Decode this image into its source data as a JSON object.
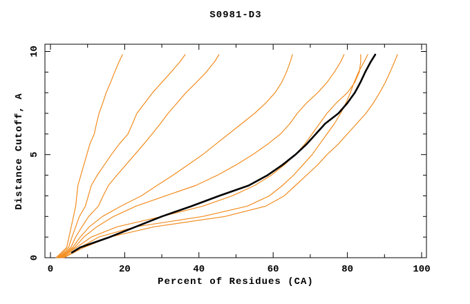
{
  "window": {
    "background": "#ffffff"
  },
  "chart_data": {
    "type": "line",
    "title": "S0981-D3",
    "xlabel": "Percent of Residues (CA)",
    "ylabel": "Distance Cutoff, A",
    "xlim": [
      0,
      100
    ],
    "ylim": [
      0,
      10
    ],
    "x_major_ticks": [
      0,
      20,
      40,
      60,
      80,
      100
    ],
    "x_minor_ticks": [
      10,
      30,
      50,
      70,
      90
    ],
    "y_major_ticks": [
      0,
      5,
      10
    ],
    "y_minor_ticks": [
      1,
      2,
      3,
      4,
      6,
      7,
      8,
      9
    ],
    "grid": false,
    "legend": "none",
    "axis_color": "#000000",
    "series_color_orange": "#f28c1e",
    "series_color_highlight": "#000000",
    "series": [
      {
        "name": "model-1",
        "color": "#f28c1e",
        "width": 1.2,
        "points": [
          [
            0,
            1.5
          ],
          [
            0.5,
            4.4
          ],
          [
            1,
            5.0
          ],
          [
            1.5,
            5.6
          ],
          [
            2,
            6.2
          ],
          [
            2.5,
            6.8
          ],
          [
            3,
            7.1
          ],
          [
            3.5,
            7.4
          ],
          [
            4,
            8.2
          ],
          [
            4.5,
            9.0
          ],
          [
            5,
            9.8
          ],
          [
            5.5,
            10.6
          ],
          [
            6,
            11.8
          ],
          [
            6.5,
            12.4
          ],
          [
            7,
            13.1
          ],
          [
            7.5,
            14.1
          ],
          [
            8,
            15.0
          ],
          [
            8.5,
            16.2
          ],
          [
            9,
            17.3
          ],
          [
            9.5,
            18.5
          ],
          [
            9.85,
            19.4
          ]
        ]
      },
      {
        "name": "model-2",
        "color": "#f28c1e",
        "width": 1.2,
        "points": [
          [
            0,
            1.8
          ],
          [
            0.5,
            4.9
          ],
          [
            1,
            5.8
          ],
          [
            1.5,
            6.8
          ],
          [
            2,
            7.8
          ],
          [
            2.5,
            9.4
          ],
          [
            3,
            10.2
          ],
          [
            3.5,
            11.0
          ],
          [
            4,
            12.6
          ],
          [
            4.5,
            14.5
          ],
          [
            5,
            16.4
          ],
          [
            5.5,
            18.5
          ],
          [
            6,
            20.9
          ],
          [
            6.5,
            22.1
          ],
          [
            7,
            23.3
          ],
          [
            7.5,
            25.4
          ],
          [
            8,
            27.5
          ],
          [
            8.5,
            30.0
          ],
          [
            9,
            32.5
          ],
          [
            9.5,
            34.9
          ],
          [
            9.85,
            36.3
          ]
        ]
      },
      {
        "name": "model-3",
        "color": "#f28c1e",
        "width": 1.2,
        "points": [
          [
            0,
            2.1
          ],
          [
            0.5,
            5.5
          ],
          [
            1,
            6.8
          ],
          [
            1.5,
            8.5
          ],
          [
            2,
            10.3
          ],
          [
            2.5,
            12.9
          ],
          [
            3,
            14.2
          ],
          [
            3.5,
            15.6
          ],
          [
            4,
            17.9
          ],
          [
            4.5,
            20.3
          ],
          [
            5,
            22.7
          ],
          [
            5.5,
            25.1
          ],
          [
            6,
            27.4
          ],
          [
            6.5,
            29.6
          ],
          [
            7,
            31.7
          ],
          [
            7.5,
            34.1
          ],
          [
            8,
            36.5
          ],
          [
            8.5,
            39.3
          ],
          [
            9,
            42.0
          ],
          [
            9.5,
            44.2
          ],
          [
            9.85,
            45.4
          ]
        ]
      },
      {
        "name": "model-4",
        "color": "#f28c1e",
        "width": 1.2,
        "points": [
          [
            0,
            2.4
          ],
          [
            0.5,
            6.0
          ],
          [
            1,
            8.0
          ],
          [
            1.5,
            10.5
          ],
          [
            2,
            14.0
          ],
          [
            2.5,
            19.0
          ],
          [
            3,
            24.5
          ],
          [
            3.5,
            28.7
          ],
          [
            4,
            33.0
          ],
          [
            4.5,
            37.0
          ],
          [
            5,
            41.0
          ],
          [
            5.5,
            44.5
          ],
          [
            6,
            48.0
          ],
          [
            6.5,
            51.5
          ],
          [
            7,
            55.0
          ],
          [
            7.5,
            58.0
          ],
          [
            8,
            60.5
          ],
          [
            8.5,
            62.3
          ],
          [
            9,
            63.6
          ],
          [
            9.5,
            64.6
          ],
          [
            9.85,
            65.2
          ]
        ]
      },
      {
        "name": "model-5",
        "color": "#f28c1e",
        "width": 1.2,
        "points": [
          [
            0,
            2.7
          ],
          [
            0.5,
            6.5
          ],
          [
            1,
            9.0
          ],
          [
            1.5,
            12.5
          ],
          [
            2,
            17.0
          ],
          [
            2.5,
            23.0
          ],
          [
            3,
            31.0
          ],
          [
            3.5,
            39.1
          ],
          [
            4,
            45.0
          ],
          [
            4.5,
            50.0
          ],
          [
            5,
            54.5
          ],
          [
            5.5,
            58.5
          ],
          [
            6,
            62.0
          ],
          [
            6.5,
            64.5
          ],
          [
            7,
            66.5
          ],
          [
            7.5,
            69.0
          ],
          [
            8,
            72.0
          ],
          [
            8.5,
            74.5
          ],
          [
            9,
            76.5
          ],
          [
            9.5,
            78.2
          ],
          [
            9.85,
            79.1
          ]
        ]
      },
      {
        "name": "model-6",
        "color": "#f28c1e",
        "width": 1.2,
        "points": [
          [
            0,
            3.0
          ],
          [
            0.5,
            7.0
          ],
          [
            1,
            11.0
          ],
          [
            1.5,
            18.0
          ],
          [
            2,
            30.0
          ],
          [
            2.5,
            41.0
          ],
          [
            3,
            49.0
          ],
          [
            3.5,
            55.0
          ],
          [
            4,
            59.5
          ],
          [
            4.5,
            63.0
          ],
          [
            5,
            66.0
          ],
          [
            5.5,
            68.5
          ],
          [
            6,
            70.5
          ],
          [
            6.5,
            72.5
          ],
          [
            7,
            74.5
          ],
          [
            7.5,
            77.0
          ],
          [
            8,
            80.0
          ],
          [
            8.5,
            82.0
          ],
          [
            9,
            83.2
          ],
          [
            9.5,
            83.6
          ],
          [
            9.85,
            83.6
          ]
        ]
      },
      {
        "name": "model-7",
        "color": "#f28c1e",
        "width": 1.2,
        "points": [
          [
            0,
            3.3
          ],
          [
            0.5,
            8.0
          ],
          [
            1,
            13.0
          ],
          [
            1.5,
            23.0
          ],
          [
            2,
            41.0
          ],
          [
            2.5,
            53.0
          ],
          [
            3,
            59.0
          ],
          [
            3.5,
            62.5
          ],
          [
            4,
            65.5
          ],
          [
            4.5,
            68.0
          ],
          [
            5,
            70.5
          ],
          [
            5.5,
            72.5
          ],
          [
            6,
            74.5
          ],
          [
            6.5,
            76.5
          ],
          [
            7,
            78.2
          ],
          [
            7.5,
            79.6
          ],
          [
            8,
            80.8
          ],
          [
            8.5,
            81.8
          ],
          [
            9,
            83.0
          ],
          [
            9.5,
            84.5
          ],
          [
            9.85,
            85.5
          ]
        ]
      },
      {
        "name": "model-8",
        "color": "#f28c1e",
        "width": 1.2,
        "points": [
          [
            0,
            3.6
          ],
          [
            0.5,
            9.0
          ],
          [
            1,
            16.0
          ],
          [
            1.5,
            28.0
          ],
          [
            2,
            47.0
          ],
          [
            2.5,
            58.0
          ],
          [
            3,
            63.0
          ],
          [
            3.5,
            66.0
          ],
          [
            4,
            69.0
          ],
          [
            4.5,
            72.0
          ],
          [
            5,
            74.5
          ],
          [
            5.5,
            77.5
          ],
          [
            6,
            80.0
          ],
          [
            6.5,
            82.5
          ],
          [
            7,
            85.0
          ],
          [
            7.5,
            87.0
          ],
          [
            8,
            88.7
          ],
          [
            8.5,
            90.2
          ],
          [
            9,
            91.5
          ],
          [
            9.5,
            92.7
          ],
          [
            9.85,
            93.5
          ]
        ]
      },
      {
        "name": "highlighted-model",
        "color": "#000000",
        "width": 2.6,
        "points": [
          [
            0.25,
            5.8
          ],
          [
            0.5,
            8.0
          ],
          [
            1,
            16.0
          ],
          [
            1.5,
            23.0
          ],
          [
            2,
            30.0
          ],
          [
            2.5,
            38.0
          ],
          [
            3,
            45.5
          ],
          [
            3.5,
            53.4
          ],
          [
            4,
            58.5
          ],
          [
            4.5,
            62.5
          ],
          [
            5,
            66.0
          ],
          [
            5.5,
            69.0
          ],
          [
            6,
            71.5
          ],
          [
            6.5,
            74.0
          ],
          [
            7,
            77.6
          ],
          [
            7.5,
            80.0
          ],
          [
            8,
            82.0
          ],
          [
            8.5,
            83.5
          ],
          [
            9,
            84.8
          ],
          [
            9.5,
            86.3
          ],
          [
            9.85,
            87.5
          ]
        ]
      }
    ]
  }
}
